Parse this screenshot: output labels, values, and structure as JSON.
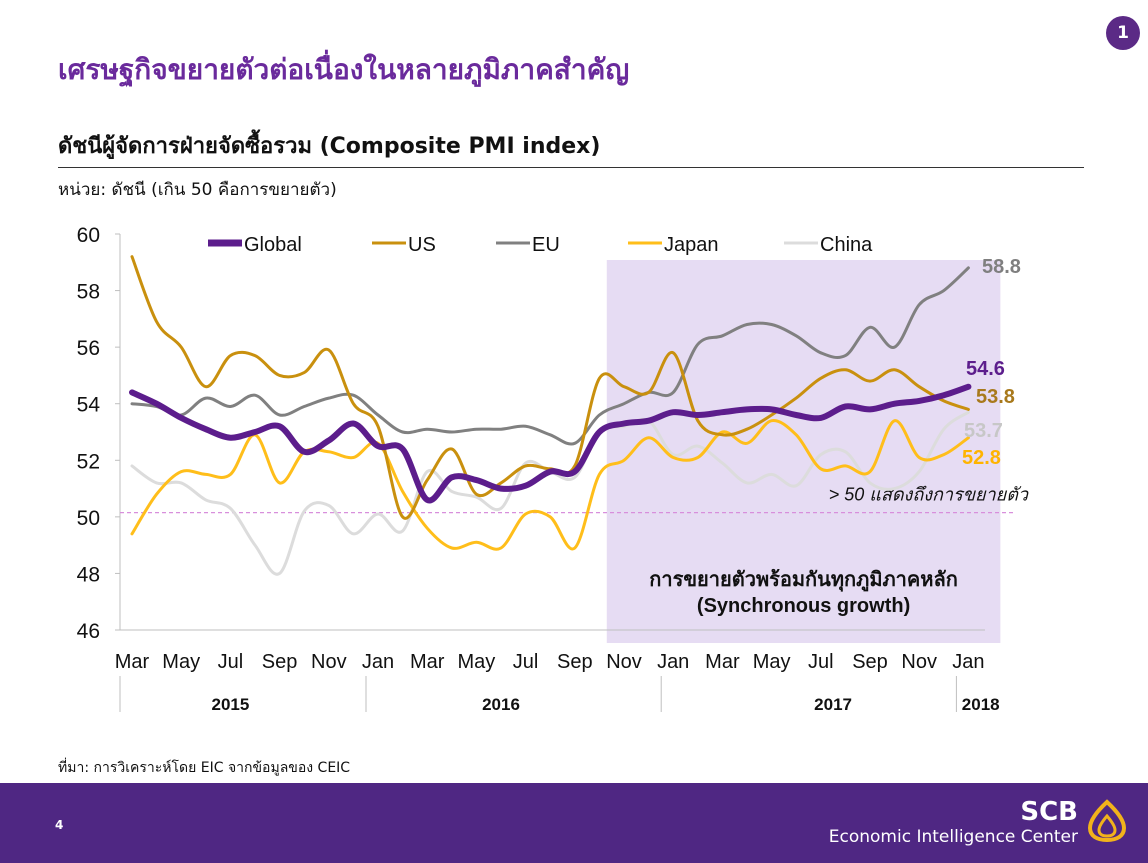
{
  "page": {
    "badge": "1",
    "slide_title": "เศรษฐกิจขยายตัวต่อเนื่องในหลายภูมิภาคสำคัญ",
    "chart_title": "ดัชนีผู้จัดการฝ่ายจัดซื้อรวม (Composite PMI index)",
    "unit_label": "หน่วย: ดัชนี (เกิน 50 คือการขยายตัว)",
    "source": "ที่มา: การวิเคราะห์โดย EIC จากข้อมูลของ CEIC",
    "page_number": "4",
    "brand_name": "SCB",
    "brand_sub": "Economic Intelligence Center"
  },
  "colors": {
    "title": "#6a2a9c",
    "footer": "#4f2783",
    "highlight": "#e6dcf3",
    "threshold": "#d88fdc"
  },
  "chart_data": {
    "type": "line",
    "ylim": [
      46,
      60
    ],
    "yticks": [
      "46",
      "48",
      "50",
      "52",
      "54",
      "56",
      "58",
      "60"
    ],
    "x_labels": [
      "Mar",
      "May",
      "Jul",
      "Sep",
      "Nov",
      "Jan",
      "Mar",
      "May",
      "Jul",
      "Sep",
      "Nov",
      "Jan",
      "Mar",
      "May",
      "Jul",
      "Sep",
      "Nov",
      "Jan"
    ],
    "years": [
      {
        "label": "2015",
        "center": 4
      },
      {
        "label": "2016",
        "center": 15
      },
      {
        "label": "2017",
        "center": 28.5
      },
      {
        "label": "2018",
        "center": 34.5
      }
    ],
    "year_dividers": [
      10,
      22,
      34
    ],
    "grid": false,
    "legend_position": "top",
    "threshold": {
      "value": 50.15,
      "label": "> 50 แสดงถึงการขยายตัว"
    },
    "highlight": {
      "from_index": 19.3,
      "to_index": 35.3,
      "label_line1": "การขยายตัวพร้อมกันทุกภูมิภาคหลัก",
      "label_line2": "(Synchronous growth)"
    },
    "series": [
      {
        "name": "Global",
        "color": "#5c1d8c",
        "width": 6,
        "end_label": "54.6",
        "bold_label": true,
        "values": [
          54.4,
          54.0,
          53.5,
          53.1,
          52.8,
          53.0,
          53.2,
          52.3,
          52.7,
          53.3,
          52.5,
          52.4,
          50.6,
          51.4,
          51.3,
          51.0,
          51.1,
          51.6,
          51.6,
          53.0,
          53.3,
          53.4,
          53.7,
          53.6,
          53.7,
          53.8,
          53.8,
          53.6,
          53.5,
          53.9,
          53.8,
          54.0,
          54.1,
          54.3,
          54.6
        ]
      },
      {
        "name": "US",
        "color": "#c9900e",
        "width": 3,
        "end_label": "53.8",
        "bold_label": false,
        "values": [
          59.2,
          56.9,
          56.0,
          54.6,
          55.7,
          55.7,
          55.0,
          55.1,
          55.9,
          54.0,
          53.2,
          50.0,
          51.3,
          52.4,
          50.8,
          51.2,
          51.8,
          51.7,
          51.8,
          54.9,
          54.6,
          54.4,
          55.8,
          53.4,
          52.9,
          53.1,
          53.6,
          54.2,
          54.9,
          55.2,
          54.8,
          55.2,
          54.6,
          54.1,
          53.8
        ]
      },
      {
        "name": "EU",
        "color": "#808080",
        "width": 3,
        "end_label": "58.8",
        "bold_label": false,
        "values": [
          54.0,
          53.9,
          53.6,
          54.2,
          53.9,
          54.3,
          53.6,
          53.9,
          54.2,
          54.3,
          53.6,
          53.0,
          53.1,
          53.0,
          53.1,
          53.1,
          53.2,
          52.9,
          52.6,
          53.6,
          54.0,
          54.4,
          54.4,
          56.1,
          56.4,
          56.8,
          56.8,
          56.4,
          55.8,
          55.7,
          56.7,
          56.0,
          57.5,
          58.0,
          58.8
        ]
      },
      {
        "name": "Japan",
        "color": "#ffbe1a",
        "width": 3,
        "end_label": "52.8",
        "bold_label": false,
        "values": [
          49.4,
          50.8,
          51.6,
          51.5,
          51.5,
          52.9,
          51.2,
          52.3,
          52.3,
          52.1,
          52.6,
          50.9,
          49.6,
          48.9,
          49.1,
          48.9,
          50.1,
          50.0,
          48.9,
          51.5,
          52.0,
          52.8,
          52.1,
          52.1,
          53.0,
          52.6,
          53.4,
          52.9,
          51.7,
          51.8,
          51.6,
          53.4,
          52.1,
          52.2,
          52.8
        ]
      },
      {
        "name": "China",
        "color": "#dcdcdc",
        "width": 3,
        "end_label": "53.7",
        "bold_label": false,
        "values": [
          51.8,
          51.2,
          51.2,
          50.6,
          50.3,
          49.0,
          48.0,
          50.2,
          50.4,
          49.4,
          50.1,
          49.5,
          51.6,
          50.9,
          50.7,
          50.3,
          51.9,
          51.6,
          51.4,
          53.0,
          53.2,
          53.4,
          52.2,
          52.5,
          51.9,
          51.2,
          51.5,
          51.1,
          52.2,
          52.3,
          51.2,
          51.0,
          51.6,
          53.1,
          53.7
        ]
      }
    ]
  }
}
